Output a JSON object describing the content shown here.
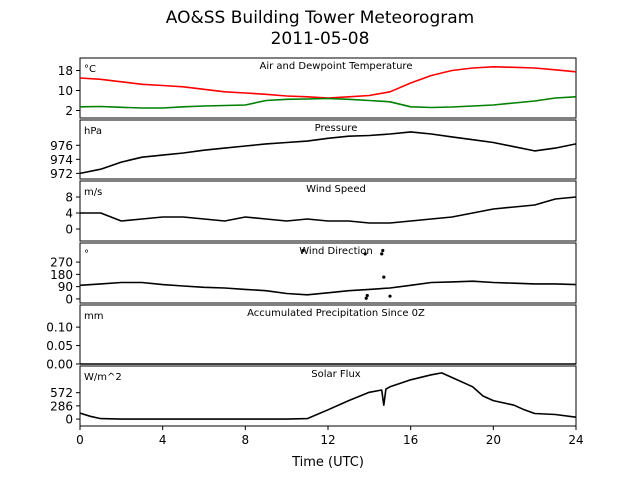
{
  "page": {
    "title": "AO&SS Building Tower Meteorogram",
    "date": "2011-05-08",
    "xlabel": "Time (UTC)",
    "x_ticks": [
      "0",
      "4",
      "8",
      "12",
      "16",
      "20",
      "24"
    ]
  },
  "chart_data": [
    {
      "type": "line",
      "panel": "temperature",
      "title": "Air and Dewpoint Temperature",
      "unit_label": "°C",
      "ylim": [
        -1,
        23
      ],
      "yticks": [
        2,
        10,
        18
      ],
      "xlim": [
        0,
        24
      ],
      "series": [
        {
          "color": "#ff0000",
          "x": [
            0,
            1,
            2,
            3,
            4,
            5,
            6,
            7,
            8,
            9,
            10,
            11,
            12,
            13,
            14,
            15,
            16,
            17,
            18,
            19,
            20,
            21,
            22,
            23,
            24
          ],
          "y": [
            15,
            14.5,
            13.5,
            12.5,
            12,
            11.5,
            10.5,
            9.5,
            9,
            8.5,
            7.8,
            7.5,
            7,
            7.5,
            8,
            9.5,
            13,
            16,
            18,
            19,
            19.5,
            19.3,
            19,
            18.3,
            17.5
          ]
        },
        {
          "color": "#008000",
          "x": [
            0,
            1,
            2,
            3,
            4,
            5,
            6,
            7,
            8,
            9,
            10,
            11,
            12,
            13,
            14,
            15,
            16,
            17,
            18,
            19,
            20,
            21,
            22,
            23,
            24
          ],
          "y": [
            3.5,
            3.6,
            3.3,
            3,
            3,
            3.5,
            3.8,
            4,
            4.2,
            6,
            6.5,
            6.6,
            6.8,
            6.5,
            6,
            5.5,
            3.5,
            3.2,
            3.4,
            3.8,
            4.2,
            5,
            5.8,
            7,
            7.5
          ]
        }
      ]
    },
    {
      "type": "line",
      "panel": "pressure",
      "title": "Pressure",
      "unit_label": "hPa",
      "ylim": [
        971.2,
        979.6
      ],
      "yticks": [
        972,
        974,
        976
      ],
      "xlim": [
        0,
        24
      ],
      "series": [
        {
          "color": "#000000",
          "x": [
            0,
            1,
            2,
            3,
            4,
            5,
            6,
            7,
            8,
            9,
            10,
            11,
            12,
            13,
            14,
            15,
            16,
            17,
            18,
            19,
            20,
            21,
            22,
            23,
            24
          ],
          "y": [
            972,
            972.6,
            973.6,
            974.3,
            974.6,
            974.9,
            975.3,
            975.6,
            975.9,
            976.2,
            976.4,
            976.6,
            977,
            977.3,
            977.4,
            977.6,
            977.9,
            977.6,
            977.2,
            976.8,
            976.4,
            975.8,
            975.2,
            975.6,
            976.2
          ]
        }
      ]
    },
    {
      "type": "line",
      "panel": "wind_speed",
      "title": "Wind Speed",
      "unit_label": "m/s",
      "ylim": [
        -3,
        12
      ],
      "yticks": [
        0,
        4,
        8
      ],
      "xlim": [
        0,
        24
      ],
      "series": [
        {
          "color": "#000000",
          "x": [
            0,
            1,
            2,
            3,
            4,
            5,
            6,
            7,
            8,
            9,
            10,
            11,
            12,
            13,
            14,
            15,
            16,
            17,
            18,
            19,
            20,
            21,
            22,
            23,
            24
          ],
          "y": [
            4,
            4,
            2,
            2.5,
            3,
            3,
            2.5,
            2,
            3,
            2.5,
            2,
            2.5,
            2,
            2,
            1.5,
            1.5,
            2,
            2.5,
            3,
            4,
            5,
            5.5,
            6,
            7.5,
            8
          ]
        }
      ]
    },
    {
      "type": "line",
      "panel": "wind_direction",
      "title": "Wind Direction",
      "unit_label": "°",
      "ylim": [
        -30,
        410
      ],
      "yticks": [
        0,
        90,
        180,
        270
      ],
      "xlim": [
        0,
        24
      ],
      "series": [
        {
          "color": "#000000",
          "x": [
            0,
            1,
            2,
            3,
            4,
            5,
            6,
            7,
            8,
            9,
            10,
            11,
            12,
            13,
            14,
            15,
            16,
            17,
            18,
            19,
            20,
            21,
            22,
            23,
            24
          ],
          "y": [
            100,
            110,
            120,
            120,
            105,
            95,
            85,
            80,
            70,
            60,
            40,
            30,
            45,
            60,
            70,
            80,
            100,
            120,
            125,
            130,
            120,
            115,
            110,
            110,
            105
          ]
        }
      ],
      "scatter": {
        "color": "#000000",
        "x": [
          10.8,
          13.8,
          13.85,
          13.9,
          14.6,
          14.65,
          14.7,
          15.0
        ],
        "y": [
          355,
          330,
          5,
          25,
          330,
          355,
          160,
          20
        ]
      }
    },
    {
      "type": "line",
      "panel": "precipitation",
      "title": "Accumulated Precipitation Since 0Z",
      "unit_label": "mm",
      "ylim": [
        0,
        0.16
      ],
      "yticks": [
        "0.00",
        "0.05",
        "0.10"
      ],
      "xlim": [
        0,
        24
      ],
      "series": [
        {
          "color": "#000000",
          "x": [
            0,
            24
          ],
          "y": [
            0,
            0
          ]
        }
      ]
    },
    {
      "type": "line",
      "panel": "solar_flux",
      "title": "Solar Flux",
      "unit_label": "W/m^2",
      "ylim": [
        -150,
        1150
      ],
      "yticks": [
        0,
        286,
        572
      ],
      "xlim": [
        0,
        24
      ],
      "series": [
        {
          "color": "#000000",
          "x": [
            0,
            0.5,
            1,
            2,
            4,
            6,
            8,
            10,
            11,
            12,
            13,
            14,
            14.6,
            14.7,
            14.8,
            15,
            16,
            17,
            17.5,
            18,
            19,
            19.5,
            20,
            21,
            21.5,
            22,
            23,
            24
          ],
          "y": [
            130,
            60,
            10,
            0,
            0,
            0,
            0,
            0,
            10,
            200,
            400,
            580,
            630,
            300,
            650,
            700,
            850,
            960,
            1000,
            900,
            700,
            500,
            400,
            300,
            200,
            120,
            100,
            40
          ]
        }
      ]
    }
  ]
}
